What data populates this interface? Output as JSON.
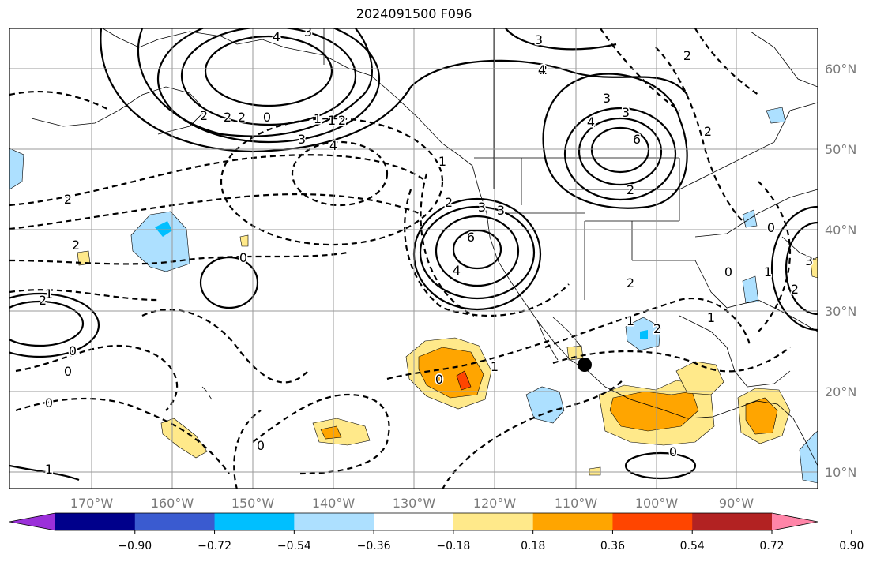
{
  "title": "2024091500 F096",
  "lon_ticks": [
    "170°W",
    "160°W",
    "150°W",
    "140°W",
    "130°W",
    "120°W",
    "110°W",
    "100°W",
    "90°W"
  ],
  "lat_ticks": [
    "60°N",
    "50°N",
    "40°N",
    "30°N",
    "20°N",
    "10°N"
  ],
  "colorbar": {
    "ticks": [
      "−0.90",
      "−0.72",
      "−0.54",
      "−0.36",
      "−0.18",
      "0.18",
      "0.36",
      "0.54",
      "0.72",
      "0.90"
    ],
    "colors": [
      "#9b30d9",
      "#00008b",
      "#3a5bd0",
      "#00bfff",
      "#ade0ff",
      "#ffffff",
      "#ffe98a",
      "#ffa500",
      "#ff4500",
      "#b22222",
      "#ff85a8"
    ]
  },
  "contour_labels": [
    "4",
    "3",
    "3",
    "2",
    "2",
    "2",
    "1",
    "0",
    "1",
    "2",
    "3",
    "4",
    "3",
    "2",
    "4",
    "3",
    "6",
    "2",
    "2",
    "4",
    "3",
    "4",
    "6",
    "3",
    "2",
    "1",
    "2",
    "2",
    "0",
    "0",
    "2",
    "1",
    "0",
    "0",
    "1",
    "0",
    "0",
    "0",
    "1",
    "2",
    "1",
    "2",
    "0",
    "3",
    "1",
    "2",
    "0",
    "2",
    "1"
  ],
  "marker": "black-dot"
}
